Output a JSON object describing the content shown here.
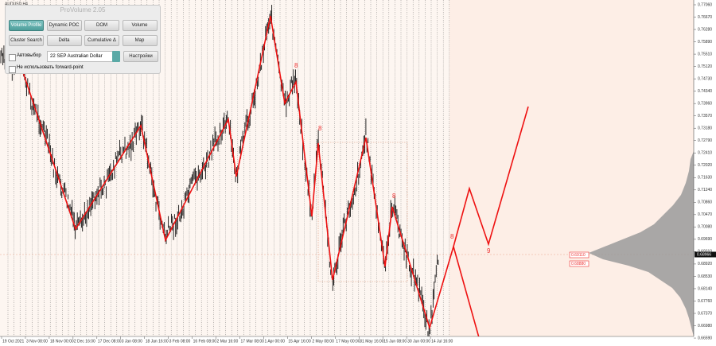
{
  "symbol": "AUDUSD,H4",
  "panel": {
    "title": "ProVolume 2.05",
    "buttons": [
      "Volume Profile",
      "Dynamic POC",
      "DOM",
      "Volume",
      "Cluster Search",
      "Delta",
      "Cumulative Δ",
      "Map"
    ],
    "auto_select": "Автовыбор",
    "instrument": "22 SEP Australian Dollar",
    "settings": "Настройки",
    "forward_point": "Не использовать forward-point"
  },
  "price_axis": [
    "0.77060",
    "0.76670",
    "0.76280",
    "0.75890",
    "0.75510",
    "0.75120",
    "0.74730",
    "0.74340",
    "0.73960",
    "0.73570",
    "0.73180",
    "0.72790",
    "0.72410",
    "0.72020",
    "0.71630",
    "0.71240",
    "0.70860",
    "0.70470",
    "0.70080",
    "0.69690",
    "0.69310",
    "0.68920",
    "0.68530",
    "0.68140",
    "0.67760",
    "0.67370",
    "0.66980",
    "0.66590"
  ],
  "current_price": "0.68966",
  "level_labels": [
    "0.69110",
    "0.68880"
  ],
  "time_axis": [
    "19 Oct 2021",
    "3 Nov 08:00",
    "18 Nov 00:00",
    "2 Dec 16:00",
    "17 Dec 08:00",
    "3 Jan 08:00",
    "18 Jan 16:00",
    "3 Feb 08:00",
    "16 Feb 08:00",
    "2 Mar 16:00",
    "17 Mar 08:00",
    "1 Apr 00:00",
    "15 Apr 16:00",
    "2 May 08:00",
    "17 May 00:00",
    "31 May 16:00",
    "15 Jun 08:00",
    "30 Jun 00:00",
    "14 Jul 16:00"
  ],
  "wave_labels": [
    "8",
    "8",
    "8",
    "8",
    "9"
  ]
}
